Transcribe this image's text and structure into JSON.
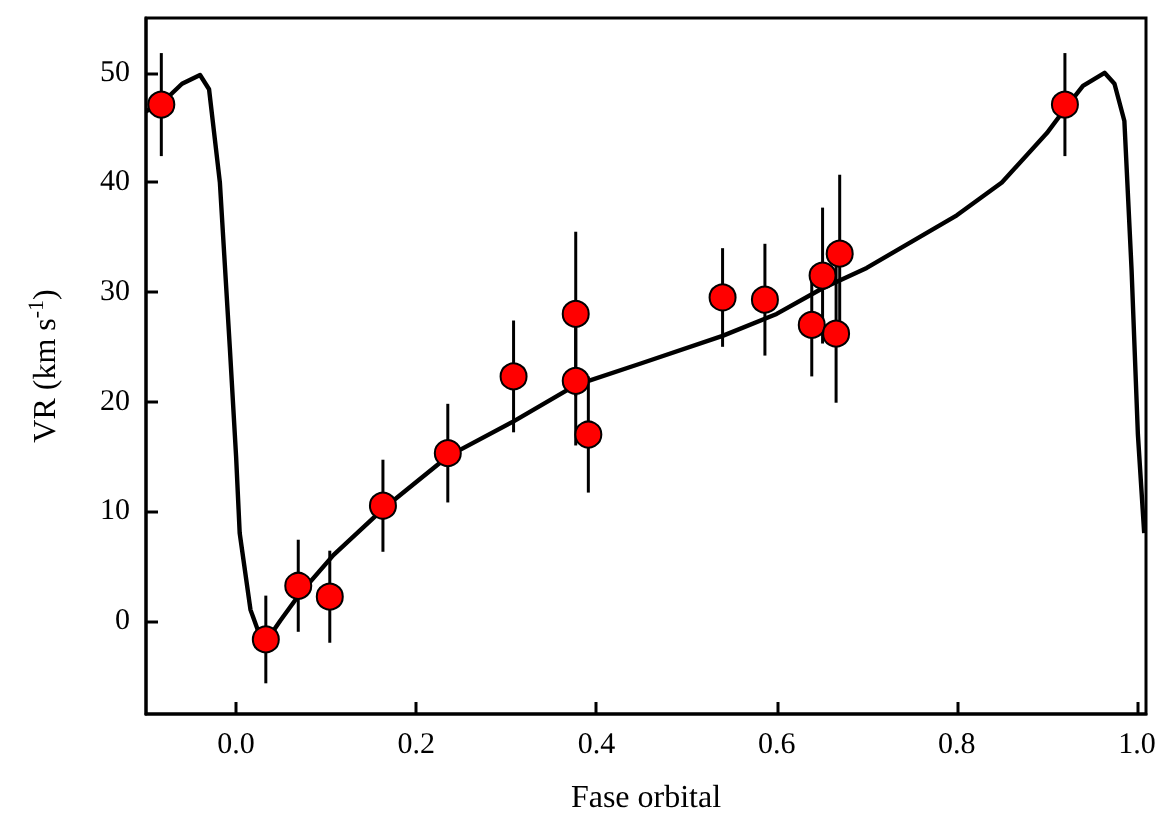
{
  "chart_data": {
    "type": "scatter",
    "xlabel": "Fase orbital",
    "ylabel": "VR (km s$^{-1}$)",
    "xlim": [
      -0.1,
      1.01
    ],
    "ylim": [
      -8.5,
      55
    ],
    "xticks": [
      {
        "value": 0,
        "label": "0.0"
      },
      {
        "value": 0.2,
        "label": "0.2"
      },
      {
        "value": 0.4,
        "label": "0.4"
      },
      {
        "value": 0.6,
        "label": "0.6"
      },
      {
        "value": 0.8,
        "label": "0.8"
      },
      {
        "value": 1,
        "label": "1.0"
      }
    ],
    "yticks": [
      0,
      10,
      20,
      30,
      40,
      50
    ],
    "marker": "circle",
    "series": [
      {
        "color": "#ff0000",
        "x": [
          -0.083,
          0.033,
          0.069,
          0.104,
          0.163,
          0.235,
          0.308,
          0.377,
          0.377,
          0.391,
          0.54,
          0.587,
          0.639,
          0.651,
          0.67,
          0.666,
          0.92
        ],
        "values": [
          47.1,
          -1.7,
          3.2,
          2.2,
          10.5,
          15.3,
          22.3,
          28,
          21.9,
          17,
          29.5,
          29.3,
          27,
          31.5,
          33.5,
          26.2,
          47.1
        ],
        "errors": [
          4.7,
          4,
          4.2,
          4.2,
          4.2,
          4.5,
          5.1,
          7.5,
          5.9,
          5.3,
          4.5,
          5.1,
          4.7,
          6.2,
          7.2,
          6.3,
          4.7
        ]
      },
      {
        "type": "line",
        "color": "#000000",
        "marker": "none",
        "x": [
          -0.1,
          -0.083,
          -0.06,
          -0.04,
          -0.03,
          -0.018,
          -0.007,
          0,
          0.004,
          0.016,
          0.027,
          0.034,
          0.049,
          0.071,
          0.108,
          0.163,
          0.235,
          0.308,
          0.377,
          0.45,
          0.54,
          0.6,
          0.65,
          0.7,
          0.8,
          0.85,
          0.9,
          0.92,
          0.94,
          0.964,
          0.975,
          0.986,
          0.994,
          1.001,
          1.008
        ],
        "values": [
          46.5,
          47.2,
          49,
          49.8,
          48.5,
          40,
          25,
          15,
          8,
          1,
          -1.5,
          -1.8,
          0,
          2.5,
          6,
          10.2,
          15,
          18.2,
          21.5,
          23.5,
          26,
          28,
          30.3,
          32.2,
          37,
          40,
          44.5,
          46.7,
          48.8,
          50,
          49,
          45.6,
          32,
          17,
          8
        ]
      }
    ]
  }
}
